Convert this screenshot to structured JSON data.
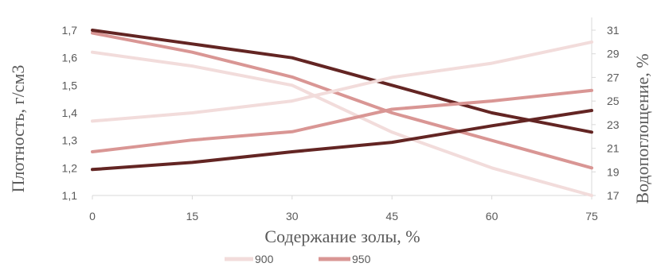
{
  "chart_data": {
    "type": "line",
    "x": [
      0,
      15,
      30,
      45,
      60,
      75
    ],
    "xlabel": "Содержание золы, %",
    "ylabel": "Плотность, г/см3",
    "y2label": "Водопоглощение, %",
    "x_ticks": [
      "0",
      "15",
      "30",
      "45",
      "60",
      "75"
    ],
    "y_ticks": [
      "1,1",
      "1,2",
      "1,3",
      "1,4",
      "1,5",
      "1,6",
      "1,7"
    ],
    "y2_ticks": [
      "17",
      "19",
      "21",
      "23",
      "25",
      "27",
      "29",
      "31"
    ],
    "ylim": [
      1.1,
      1.7
    ],
    "y2lim": [
      17,
      31
    ],
    "grid": false,
    "legend": "bottom",
    "legend_entries": [
      "900",
      "950"
    ],
    "series": [
      {
        "name": "900",
        "axis": "left",
        "color": "#f2dcdb",
        "values": [
          1.62,
          1.57,
          1.5,
          1.33,
          1.2,
          1.1
        ]
      },
      {
        "name": "950",
        "axis": "left",
        "color": "#d99694",
        "values": [
          1.69,
          1.62,
          1.53,
          1.4,
          1.3,
          1.2
        ]
      },
      {
        "axis": "left",
        "color": "#632523",
        "values": [
          1.7,
          1.65,
          1.6,
          1.5,
          1.4,
          1.33
        ]
      },
      {
        "axis": "right",
        "color": "#f2dcdb",
        "values": [
          23.3,
          24.0,
          25.0,
          27.0,
          28.2,
          30.0
        ]
      },
      {
        "axis": "right",
        "color": "#d99694",
        "values": [
          20.7,
          21.7,
          22.4,
          24.3,
          25.0,
          25.9
        ]
      },
      {
        "axis": "right",
        "color": "#632523",
        "values": [
          19.2,
          19.8,
          20.7,
          21.5,
          22.9,
          24.2
        ]
      }
    ]
  }
}
